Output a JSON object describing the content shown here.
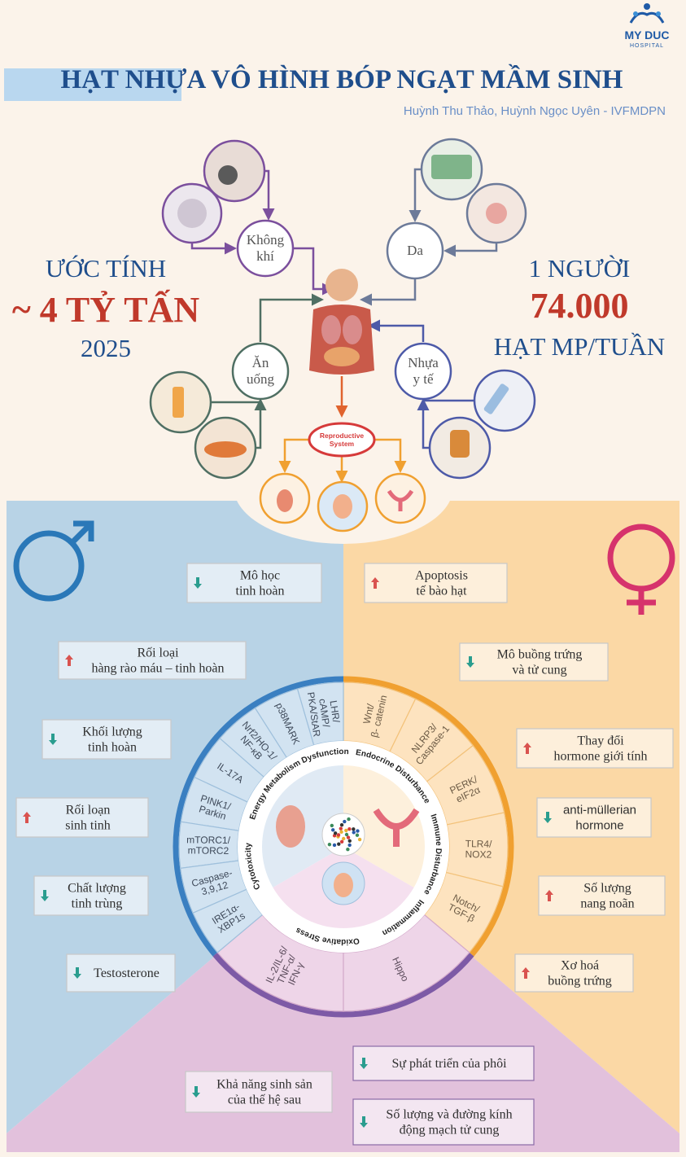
{
  "logo": {
    "name": "MY DUC",
    "subtitle": "HOSPITAL"
  },
  "header": {
    "title_highlight": "HẠT NHỰA",
    "title_rest": "VÔ HÌNH BÓP NGẠT MẦM SINH",
    "authors": "Huỳnh Thu Thảo, Huỳnh Ngọc Uyên - IVFMDPN"
  },
  "stats": {
    "left": [
      "ƯỚC TÍNH",
      "~ 4 TỶ TẤN",
      "2025"
    ],
    "right": [
      "1 NGƯỜI",
      "74.000",
      "HẠT MP/TUẦN"
    ]
  },
  "sources": [
    [
      "Không",
      "khí"
    ],
    [
      "Da"
    ],
    [
      "Ăn",
      "uống"
    ],
    [
      "Nhựa",
      "y tế"
    ]
  ],
  "reproductive_system": [
    "Reproductive",
    "System"
  ],
  "male_effects": [
    {
      "direction": "down",
      "lines": [
        "Mô học",
        "tinh hoàn"
      ]
    },
    {
      "direction": "up",
      "lines": [
        "Rối loại",
        "hàng rào máu – tinh hoàn"
      ]
    },
    {
      "direction": "down",
      "lines": [
        "Khối lượng",
        "tinh hoàn"
      ]
    },
    {
      "direction": "up",
      "lines": [
        "Rối loạn",
        "sinh tinh"
      ]
    },
    {
      "direction": "down",
      "lines": [
        "Chất lượng",
        "tinh trùng"
      ]
    },
    {
      "direction": "down",
      "lines": [
        "Testosterone"
      ]
    }
  ],
  "female_effects": [
    {
      "direction": "up",
      "lines": [
        "Apoptosis",
        "tế bào hạt"
      ]
    },
    {
      "direction": "down",
      "lines": [
        "Mô buồng trứng",
        "và tử cung"
      ]
    },
    {
      "direction": "up",
      "lines": [
        "Thay đổi",
        "hormone giới tính"
      ]
    },
    {
      "direction": "down",
      "lines": [
        "anti-müllerian",
        "hormone"
      ]
    },
    {
      "direction": "up",
      "lines": [
        "Số lượng",
        "nang noãn"
      ]
    },
    {
      "direction": "up",
      "lines": [
        "Xơ hoá",
        "buồng trứng"
      ]
    }
  ],
  "offspring_effects": [
    {
      "direction": "down",
      "lines": [
        "Khả năng sinh sản",
        "của thế hệ sau"
      ]
    },
    {
      "direction": "down",
      "lines": [
        "Sự phát triển của phôi"
      ]
    },
    {
      "direction": "down",
      "lines": [
        "Số lượng và đường kính",
        "động mạch tử cung"
      ]
    }
  ],
  "wheel": {
    "mechanisms": [
      "Cytotoxicity",
      "Energy Metabolism Dysfunction",
      "Endocrine Disturbance",
      "Immune Disturbance",
      "Inflammation",
      "Oxidative Stress"
    ],
    "male_pathways": [
      [
        "LHR/",
        "cAMP/",
        "PKA/StAR"
      ],
      [
        "p38MARK"
      ],
      [
        "Nrf2/HO-1/",
        "NF-κB"
      ],
      [
        "IL-17A"
      ],
      [
        "PINK1/",
        "Parkin"
      ],
      [
        "mTORC1/",
        "mTORC2"
      ],
      [
        "Caspase-",
        "3,9,12"
      ],
      [
        "IRE1α-",
        "XBP1s"
      ]
    ],
    "female_pathways": [
      [
        "Wnt/",
        "β- catenin"
      ],
      [
        "NLRP3/",
        "Caspase-1"
      ],
      [
        "PERK/",
        "eIF2α"
      ],
      [
        "TLR4/",
        "NOX2"
      ],
      [
        "Notch/",
        "TGF-β"
      ]
    ],
    "offspring_pathways": [
      [
        "IL-2/IL-6/",
        "TNF-α/",
        "IFN-γ"
      ],
      [
        "Hippo"
      ]
    ]
  }
}
